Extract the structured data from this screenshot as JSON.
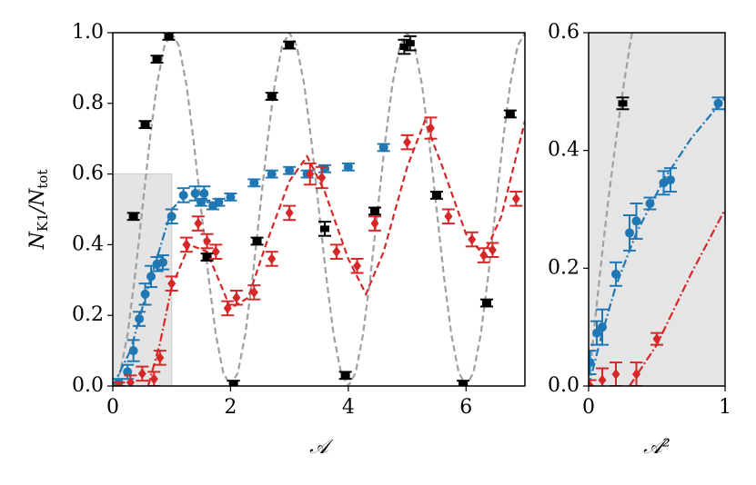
{
  "chart_data": [
    {
      "type": "scatter",
      "xlabel": "𝒜",
      "ylabel": [
        {
          "text": "N"
        },
        {
          "text": "K1",
          "sub": true
        },
        {
          "text": "/N"
        },
        {
          "text": "tot",
          "sub": true
        }
      ],
      "xlim": [
        0,
        7
      ],
      "ylim": [
        0,
        1
      ],
      "xticks": [
        0,
        2,
        4,
        6
      ],
      "yticks": [
        {
          "value": 0,
          "label": "0.0"
        },
        {
          "value": 0.2,
          "label": "0.2"
        },
        {
          "value": 0.4,
          "label": "0.4"
        },
        {
          "value": 0.6,
          "label": "0.6"
        },
        {
          "value": 0.8,
          "label": "0.8"
        },
        {
          "value": 1,
          "label": "1.0"
        }
      ],
      "highlight": {
        "xlim": [
          0,
          1
        ],
        "ylim": [
          0,
          0.6
        ],
        "color": "#d9d9d9"
      },
      "lines": [
        {
          "color": "#a0a0a0",
          "style": "dashed",
          "x": [
            0,
            0.125,
            0.25,
            0.375,
            0.5,
            0.625,
            0.75,
            0.875,
            1,
            1.125,
            1.25,
            1.375,
            1.5,
            1.625,
            1.75,
            1.875,
            2,
            2.125,
            2.25,
            2.375,
            2.5,
            2.625,
            2.75,
            2.875,
            3,
            3.125,
            3.25,
            3.375,
            3.5,
            3.625,
            3.75,
            3.875,
            4,
            4.125,
            4.25,
            4.375,
            4.5,
            4.625,
            4.75,
            4.875,
            5,
            5.125,
            5.25,
            5.375,
            5.5,
            5.625,
            5.75,
            5.875,
            6,
            6.125,
            6.25,
            6.375,
            6.5,
            6.625,
            6.75,
            6.875,
            7
          ],
          "values": [
            0,
            0.038,
            0.146,
            0.309,
            0.5,
            0.691,
            0.854,
            0.962,
            1,
            0.962,
            0.854,
            0.691,
            0.5,
            0.309,
            0.146,
            0.038,
            0,
            0.038,
            0.146,
            0.309,
            0.5,
            0.691,
            0.854,
            0.962,
            1,
            0.962,
            0.854,
            0.691,
            0.5,
            0.309,
            0.146,
            0.038,
            0,
            0.038,
            0.146,
            0.309,
            0.5,
            0.691,
            0.854,
            0.962,
            1,
            0.962,
            0.854,
            0.691,
            0.5,
            0.309,
            0.146,
            0.038,
            0,
            0.038,
            0.146,
            0.309,
            0.5,
            0.691,
            0.854,
            0.962,
            1
          ]
        },
        {
          "color": "#1f77b4",
          "style": "dashdot",
          "x": [
            0,
            0.3,
            0.6,
            1.0,
            1.3
          ],
          "values": [
            0,
            0.1,
            0.28,
            0.5,
            0.55
          ]
        },
        {
          "color": "#d62728",
          "style": "dashdot",
          "x": [
            0.6,
            0.8,
            1.0
          ],
          "values": [
            0,
            0.12,
            0.28
          ]
        },
        {
          "color": "#d62728",
          "style": "dashed",
          "x": [
            1.0,
            1.3,
            1.6,
            2.0,
            2.3,
            2.6,
            3.0,
            3.3,
            3.6,
            4.0,
            4.3,
            4.6,
            5.0,
            5.3,
            5.6,
            6.0,
            6.3,
            6.6,
            7.0
          ],
          "values": [
            0.28,
            0.4,
            0.38,
            0.22,
            0.25,
            0.4,
            0.58,
            0.65,
            0.55,
            0.36,
            0.26,
            0.38,
            0.62,
            0.75,
            0.62,
            0.43,
            0.37,
            0.48,
            0.75
          ]
        }
      ],
      "series": [
        {
          "color": "#000000",
          "marker": "square",
          "x": [
            0.35,
            0.55,
            0.75,
            0.95,
            1.6,
            2.05,
            2.45,
            2.7,
            3.0,
            3.6,
            3.95,
            4.45,
            4.95,
            5.05,
            5.5,
            5.95,
            6.35,
            6.75
          ],
          "values": [
            0.48,
            0.74,
            0.925,
            0.99,
            0.365,
            0.005,
            0.41,
            0.82,
            0.965,
            0.445,
            0.03,
            0.495,
            0.96,
            0.97,
            0.54,
            0.005,
            0.235,
            0.77
          ],
          "errors": [
            0.01,
            0.01,
            0.01,
            0.01,
            0.01,
            0.01,
            0.01,
            0.01,
            0.01,
            0.02,
            0.01,
            0.01,
            0.02,
            0.02,
            0.01,
            0.01,
            0.01,
            0.01
          ]
        },
        {
          "color": "#1f77b4",
          "marker": "circle",
          "x": [
            0.1,
            0.25,
            0.35,
            0.45,
            0.55,
            0.65,
            0.75,
            0.85,
            1.0,
            1.2,
            1.4,
            1.5,
            1.55,
            1.7,
            1.8,
            2.0,
            2.4,
            2.7,
            3.0,
            3.3,
            3.6,
            4.0,
            4.6
          ],
          "values": [
            0.01,
            0.04,
            0.1,
            0.19,
            0.26,
            0.31,
            0.345,
            0.35,
            0.48,
            0.54,
            0.545,
            0.52,
            0.545,
            0.51,
            0.52,
            0.535,
            0.575,
            0.6,
            0.61,
            0.6,
            0.615,
            0.62,
            0.675
          ],
          "errors": [
            0.01,
            0.02,
            0.03,
            0.02,
            0.03,
            0.03,
            0.02,
            0.02,
            0.02,
            0.02,
            0.02,
            0.01,
            0.02,
            0.01,
            0.01,
            0.01,
            0.01,
            0.01,
            0.01,
            0.01,
            0.01,
            0.01,
            0.01
          ]
        },
        {
          "color": "#d62728",
          "marker": "diamond",
          "x": [
            0.1,
            0.3,
            0.5,
            0.7,
            0.8,
            1.0,
            1.25,
            1.45,
            1.6,
            1.75,
            1.95,
            2.1,
            2.4,
            2.7,
            3.0,
            3.35,
            3.55,
            3.8,
            4.15,
            4.45,
            5.0,
            5.4,
            5.7,
            6.1,
            6.3,
            6.45,
            6.85
          ],
          "values": [
            0.0,
            0.01,
            0.035,
            0.02,
            0.08,
            0.29,
            0.4,
            0.46,
            0.41,
            0.38,
            0.22,
            0.25,
            0.265,
            0.36,
            0.49,
            0.6,
            0.59,
            0.38,
            0.34,
            0.46,
            0.69,
            0.73,
            0.48,
            0.415,
            0.37,
            0.385,
            0.53
          ],
          "errors": [
            0.01,
            0.02,
            0.02,
            0.02,
            0.02,
            0.02,
            0.02,
            0.02,
            0.02,
            0.02,
            0.02,
            0.02,
            0.02,
            0.02,
            0.02,
            0.03,
            0.03,
            0.02,
            0.02,
            0.02,
            0.02,
            0.03,
            0.02,
            0.02,
            0.02,
            0.02,
            0.02
          ]
        }
      ]
    },
    {
      "type": "scatter",
      "xlabel": "𝒜²",
      "xlim": [
        0,
        1
      ],
      "ylim": [
        0,
        0.6
      ],
      "xticks": [
        0,
        1
      ],
      "yticks": [
        {
          "value": 0,
          "label": "0.0"
        },
        {
          "value": 0.2,
          "label": "0.2"
        },
        {
          "value": 0.4,
          "label": "0.4"
        },
        {
          "value": 0.6,
          "label": "0.6"
        }
      ],
      "background": "#e5e5e5",
      "lines": [
        {
          "color": "#a0a0a0",
          "style": "dashed",
          "x": [
            0,
            0.05,
            0.1,
            0.15,
            0.2,
            0.25,
            0.3,
            0.35
          ],
          "values": [
            0,
            0.118,
            0.227,
            0.326,
            0.417,
            0.5,
            0.575,
            0.642
          ]
        },
        {
          "color": "#1f77b4",
          "style": "dashdot",
          "x": [
            0,
            0.1,
            0.2,
            0.35,
            0.55,
            0.75,
            1.0
          ],
          "values": [
            0,
            0.09,
            0.17,
            0.26,
            0.35,
            0.42,
            0.49
          ]
        },
        {
          "color": "#d62728",
          "style": "dashdot",
          "x": [
            0.3,
            0.5,
            0.75,
            1.0
          ],
          "values": [
            0,
            0.07,
            0.19,
            0.3
          ]
        }
      ],
      "series": [
        {
          "color": "#000000",
          "marker": "square",
          "x": [
            0.25
          ],
          "values": [
            0.48
          ],
          "errors": [
            0.01
          ]
        },
        {
          "color": "#1f77b4",
          "marker": "circle",
          "x": [
            0.01,
            0.06,
            0.1,
            0.2,
            0.3,
            0.35,
            0.45,
            0.55,
            0.6,
            0.95
          ],
          "values": [
            0.04,
            0.09,
            0.1,
            0.19,
            0.26,
            0.28,
            0.31,
            0.345,
            0.35,
            0.48
          ],
          "errors": [
            0.02,
            0.02,
            0.03,
            0.02,
            0.03,
            0.03,
            0.01,
            0.02,
            0.02,
            0.01
          ]
        },
        {
          "color": "#d62728",
          "marker": "diamond",
          "x": [
            0.01,
            0.1,
            0.2,
            0.35,
            0.5
          ],
          "values": [
            0.0,
            0.01,
            0.02,
            0.02,
            0.08
          ],
          "errors": [
            0.01,
            0.02,
            0.02,
            0.02,
            0.01
          ]
        }
      ]
    }
  ]
}
